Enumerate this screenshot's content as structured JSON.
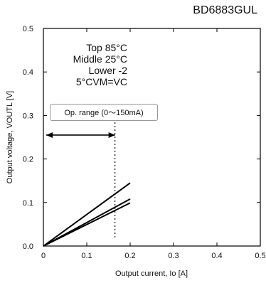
{
  "part_number": "BD6883GUL",
  "chart_data": {
    "type": "line",
    "title": "",
    "xlabel": "Output current, Io [A]",
    "ylabel": "Output voltage, VOUTL [V]",
    "xlim": [
      0,
      0.5
    ],
    "ylim": [
      0,
      0.5
    ],
    "xticks": [
      "0",
      "0.1",
      "0.2",
      "0.3",
      "0.4",
      "0.5"
    ],
    "yticks": [
      "0.0",
      "0.1",
      "0.2",
      "0.3",
      "0.4",
      "0.5"
    ],
    "grid": false,
    "series": [
      {
        "name": "Top 85°C",
        "x": [
          0,
          0.2
        ],
        "y": [
          0,
          0.145
        ]
      },
      {
        "name": "Middle 25°C",
        "x": [
          0,
          0.2
        ],
        "y": [
          0,
          0.108
        ]
      },
      {
        "name": "Lower -25°C",
        "x": [
          0,
          0.2
        ],
        "y": [
          0,
          0.099
        ]
      }
    ],
    "legend_lines": [
      "Top 85°C",
      "Middle 25°C",
      "Lower -2",
      "5°CVM=VC"
    ],
    "annotation": {
      "label": "Op. range (0～150mA)",
      "range_x": [
        0,
        0.165
      ],
      "marker_x": 0.165,
      "arrow_y": 0.255
    }
  }
}
